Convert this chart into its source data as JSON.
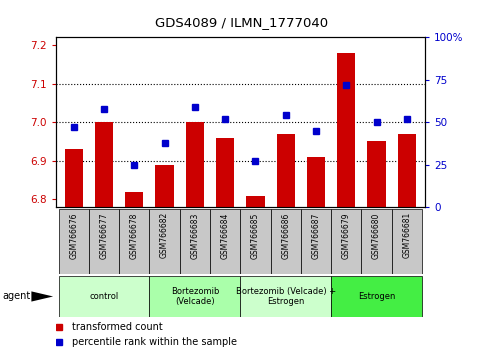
{
  "title": "GDS4089 / ILMN_1777040",
  "samples": [
    "GSM766676",
    "GSM766677",
    "GSM766678",
    "GSM766682",
    "GSM766683",
    "GSM766684",
    "GSM766685",
    "GSM766686",
    "GSM766687",
    "GSM766679",
    "GSM766680",
    "GSM766681"
  ],
  "red_values": [
    6.93,
    7.0,
    6.82,
    6.89,
    7.0,
    6.96,
    6.81,
    6.97,
    6.91,
    7.18,
    6.95,
    6.97
  ],
  "blue_values": [
    47,
    58,
    25,
    38,
    59,
    52,
    27,
    54,
    45,
    72,
    50,
    52
  ],
  "ylim_left": [
    6.78,
    7.22
  ],
  "ylim_right": [
    0,
    100
  ],
  "yticks_left": [
    6.8,
    6.9,
    7.0,
    7.1,
    7.2
  ],
  "yticks_right": [
    0,
    25,
    50,
    75,
    100
  ],
  "ytick_labels_right": [
    "0",
    "25",
    "50",
    "75",
    "100%"
  ],
  "hlines": [
    6.9,
    7.0,
    7.1
  ],
  "groups": [
    {
      "label": "control",
      "start": 0,
      "end": 3,
      "color": "#ccffcc"
    },
    {
      "label": "Bortezomib\n(Velcade)",
      "start": 3,
      "end": 6,
      "color": "#aaffaa"
    },
    {
      "label": "Bortezomib (Velcade) +\nEstrogen",
      "start": 6,
      "end": 9,
      "color": "#ccffcc"
    },
    {
      "label": "Estrogen",
      "start": 9,
      "end": 12,
      "color": "#44ee44"
    }
  ],
  "red_color": "#cc0000",
  "blue_color": "#0000cc",
  "plot_bg": "#ffffff",
  "legend_red": "transformed count",
  "legend_blue": "percentile rank within the sample",
  "agent_label": "agent",
  "left_tick_color": "#cc0000",
  "right_tick_color": "#0000cc",
  "sample_cell_color": "#c8c8c8"
}
